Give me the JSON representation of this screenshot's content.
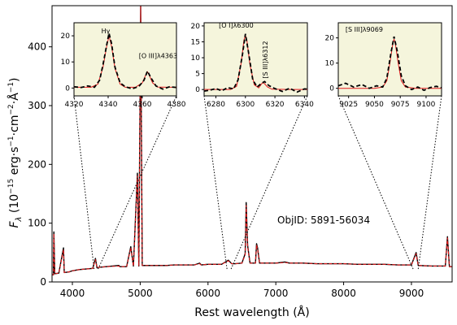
{
  "chart_data": {
    "type": "line",
    "title": "",
    "xlabel": "Rest wavelength (Å)",
    "ylabel": "F_λ (10^-15 erg·s^-1·cm^-2·Å^-1)",
    "xlim": [
      3700,
      9600
    ],
    "ylim": [
      0,
      470
    ],
    "xticks": [
      4000,
      5000,
      6000,
      7000,
      8000,
      9000
    ],
    "yticks": [
      0,
      100,
      200,
      300,
      400
    ],
    "annotation": "ObjID: 5891-56034",
    "series": [
      {
        "style": "black dashed (observed)",
        "color": "#000000",
        "x": [
          3700,
          3720,
          3727,
          3740,
          3800,
          3869,
          3880,
          3950,
          4000,
          4100,
          4200,
          4300,
          4340,
          4363,
          4400,
          4500,
          4686,
          4700,
          4800,
          4861,
          4900,
          4959,
          4980,
          5007,
          5030,
          5100,
          5200,
          5300,
          5400,
          5500,
          5600,
          5700,
          5800,
          5876,
          5900,
          6000,
          6100,
          6200,
          6300,
          6350,
          6400,
          6500,
          6548,
          6563,
          6584,
          6620,
          6700,
          6716,
          6731,
          6760,
          6800,
          7000,
          7136,
          7200,
          7400,
          7600,
          7800,
          8000,
          8200,
          8400,
          8600,
          8800,
          9000,
          9069,
          9100,
          9300,
          9500,
          9531,
          9560,
          9600
        ],
        "y": [
          12,
          12,
          85,
          14,
          15,
          58,
          16,
          17,
          19,
          21,
          22,
          23,
          40,
          24,
          25,
          26,
          28,
          26,
          26,
          60,
          27,
          185,
          27,
          470,
          28,
          28,
          28,
          28,
          28,
          29,
          29,
          29,
          29,
          32,
          29,
          30,
          30,
          30,
          37,
          31,
          31,
          32,
          48,
          135,
          62,
          32,
          32,
          65,
          58,
          32,
          32,
          32,
          34,
          32,
          32,
          31,
          31,
          31,
          30,
          30,
          30,
          29,
          29,
          50,
          28,
          27,
          27,
          77,
          26,
          26
        ]
      },
      {
        "style": "red solid (model)",
        "color": "#e31a1c",
        "x": [
          3700,
          3720,
          3727,
          3740,
          3800,
          3869,
          3880,
          3950,
          4000,
          4100,
          4200,
          4300,
          4340,
          4363,
          4400,
          4500,
          4686,
          4700,
          4800,
          4861,
          4900,
          4959,
          4980,
          5007,
          5030,
          5100,
          5200,
          5300,
          5400,
          5500,
          5600,
          5700,
          5800,
          5876,
          5900,
          6000,
          6100,
          6200,
          6300,
          6350,
          6400,
          6500,
          6548,
          6563,
          6584,
          6620,
          6700,
          6716,
          6731,
          6760,
          6800,
          7000,
          7136,
          7200,
          7400,
          7600,
          7800,
          8000,
          8200,
          8400,
          8600,
          8800,
          9000,
          9069,
          9100,
          9300,
          9500,
          9531,
          9560,
          9600
        ],
        "y": [
          12,
          12,
          82,
          14,
          15,
          55,
          16,
          17,
          19,
          21,
          22,
          23,
          38,
          24,
          25,
          26,
          27,
          26,
          26,
          58,
          27,
          180,
          27,
          470,
          28,
          28,
          28,
          28,
          28,
          29,
          29,
          29,
          29,
          31,
          29,
          30,
          30,
          30,
          36,
          31,
          31,
          32,
          46,
          130,
          60,
          32,
          32,
          63,
          56,
          32,
          32,
          32,
          33,
          32,
          32,
          31,
          31,
          31,
          30,
          30,
          30,
          29,
          29,
          48,
          28,
          27,
          27,
          75,
          26,
          26
        ]
      }
    ],
    "insets": [
      {
        "region": [
          4320,
          4380
        ],
        "xlim": [
          4320,
          4380
        ],
        "ylim": [
          -3,
          25
        ],
        "xticks": [
          4320,
          4340,
          4360,
          4380
        ],
        "yticks": [
          0,
          10,
          20
        ],
        "labels": [
          {
            "text": "Hγ",
            "x": 4336,
            "y": 21
          },
          {
            "text": "[O III]λ4363",
            "x": 4358,
            "y": 11.5
          }
        ],
        "observed": {
          "x": [
            4320,
            4324,
            4328,
            4332,
            4335,
            4337,
            4339,
            4340.5,
            4342,
            4344,
            4347,
            4350,
            4354,
            4358,
            4361,
            4363,
            4365,
            4368,
            4372,
            4376,
            4380
          ],
          "y": [
            0.5,
            0.2,
            0.8,
            0.3,
            3,
            9,
            16,
            21,
            17,
            8,
            2,
            0.5,
            -0.3,
            0.6,
            3,
            6.5,
            4,
            0.8,
            -0.4,
            0.5,
            0.2
          ]
        },
        "model": {
          "x": [
            4320,
            4330,
            4334,
            4337,
            4339,
            4340.5,
            4342,
            4344,
            4347,
            4350,
            4356,
            4360,
            4362,
            4363,
            4364,
            4366,
            4369,
            4375,
            4380
          ],
          "y": [
            0.3,
            0.3,
            1.5,
            8,
            15.5,
            20,
            16,
            7.5,
            1.5,
            0.3,
            0.3,
            2,
            5,
            6.2,
            5,
            2,
            0.4,
            0.3,
            0.3
          ]
        }
      },
      {
        "region": [
          6280,
          6340
        ],
        "xlim": [
          6272,
          6342
        ],
        "ylim": [
          -2,
          21
        ],
        "xticks": [
          6280,
          6300,
          6320,
          6340
        ],
        "yticks": [
          0,
          5,
          10,
          15,
          20
        ],
        "labels": [
          {
            "text": "[O I]λ6300",
            "x": 6282,
            "y": 19.5
          },
          {
            "text": "[S III]λ6312",
            "x": 6315,
            "y": 3.5,
            "rotate": true
          }
        ],
        "observed": {
          "x": [
            6272,
            6276,
            6280,
            6284,
            6288,
            6292,
            6295,
            6298,
            6300,
            6302,
            6305,
            6308,
            6311,
            6313,
            6316,
            6320,
            6325,
            6330,
            6335,
            6340,
            6342
          ],
          "y": [
            -0.5,
            -0.2,
            0.3,
            -0.4,
            0.6,
            0.2,
            3,
            11,
            17.5,
            12,
            3,
            0.8,
            2,
            2.5,
            1.2,
            0.3,
            -0.6,
            0.4,
            -0.8,
            0.2,
            0.1
          ]
        },
        "model": {
          "x": [
            6272,
            6290,
            6294,
            6297,
            6299,
            6300,
            6301,
            6303,
            6306,
            6309,
            6311,
            6312,
            6313,
            6315,
            6318,
            6330,
            6342
          ],
          "y": [
            0,
            0,
            1,
            8,
            15.5,
            17,
            15.5,
            8,
            1.5,
            0.5,
            1.8,
            2.2,
            1.8,
            0.8,
            0.1,
            0,
            0
          ]
        }
      },
      {
        "region": [
          9025,
          9100
        ],
        "xlim": [
          9015,
          9115
        ],
        "ylim": [
          -3,
          26
        ],
        "xticks": [
          9025,
          9050,
          9075,
          9100
        ],
        "yticks": [
          0,
          10,
          20
        ],
        "labels": [
          {
            "text": "[S III]λ9069",
            "x": 9022,
            "y": 22.5
          }
        ],
        "observed": {
          "x": [
            9015,
            9022,
            9030,
            9038,
            9045,
            9052,
            9058,
            9062,
            9066,
            9069,
            9072,
            9076,
            9080,
            9086,
            9092,
            9098,
            9104,
            9110,
            9115
          ],
          "y": [
            1,
            2,
            0.5,
            1.5,
            0,
            1,
            0.5,
            4,
            14,
            20.5,
            15,
            5,
            1,
            -0.5,
            0.5,
            -0.8,
            0.3,
            0.8,
            0.2
          ]
        },
        "model": {
          "x": [
            9015,
            9050,
            9058,
            9062,
            9065,
            9067.5,
            9069,
            9070.5,
            9073,
            9076,
            9080,
            9090,
            9115
          ],
          "y": [
            0,
            0,
            0.5,
            3,
            10,
            17,
            19.5,
            17,
            10,
            3,
            0.5,
            0,
            0
          ]
        }
      }
    ]
  }
}
